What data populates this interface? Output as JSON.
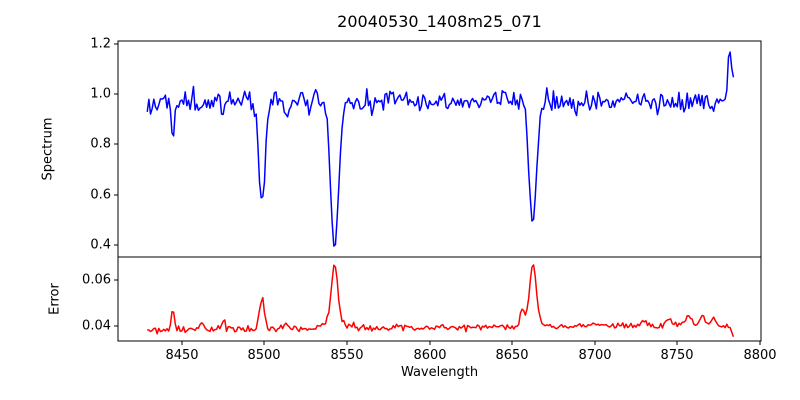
{
  "figure": {
    "title": "20040530_1408m25_071",
    "background_color": "#ffffff",
    "spine_color": "#000000",
    "text_color": "#000000"
  },
  "chart_data": [
    {
      "type": "line",
      "name": "spectrum-panel",
      "title": "20040530_1408m25_071",
      "ylabel": "Spectrum",
      "line_color": "#0000ff",
      "grid": false,
      "legend": null,
      "xlim": [
        8411.3,
        8800.7
      ],
      "ylim": [
        0.352,
        1.212
      ],
      "yticks": {
        "values": [
          0.4,
          0.6,
          0.8,
          1.0,
          1.2
        ],
        "labels": [
          "0.4",
          "0.6",
          "0.8",
          "1.0",
          "1.2"
        ]
      },
      "x_start": 8429,
      "x_end": 8784,
      "n_points": 356,
      "continuum": 0.972,
      "noise_sigma": 0.021,
      "noise_seed": 20040530,
      "absorption_lines": [
        {
          "center": 8444.5,
          "depth": 0.14,
          "sigma": 0.9
        },
        {
          "center": 8475.0,
          "depth": 0.05,
          "sigma": 1.0
        },
        {
          "center": 8498.5,
          "depth": 0.42,
          "sigma": 1.9
        },
        {
          "center": 8513.0,
          "depth": 0.05,
          "sigma": 0.9
        },
        {
          "center": 8542.5,
          "depth": 0.585,
          "sigma": 2.4
        },
        {
          "center": 8599.0,
          "depth": 0.04,
          "sigma": 0.9
        },
        {
          "center": 8648.0,
          "depth": 0.04,
          "sigma": 0.9
        },
        {
          "center": 8662.5,
          "depth": 0.49,
          "sigma": 2.2
        },
        {
          "center": 8688.0,
          "depth": 0.04,
          "sigma": 0.9
        }
      ],
      "emission_spike": {
        "center": 8782.0,
        "amp": 0.21,
        "sigma": 1.4
      }
    },
    {
      "type": "line",
      "name": "error-panel",
      "ylabel": "Error",
      "xlabel": "Wavelength",
      "line_color": "#ff0000",
      "grid": false,
      "legend": null,
      "xlim": [
        8411.3,
        8800.7
      ],
      "ylim": [
        0.0336,
        0.0698
      ],
      "yticks": {
        "values": [
          0.04,
          0.06
        ],
        "labels": [
          "0.04",
          "0.06"
        ]
      },
      "xticks": {
        "values": [
          8450,
          8500,
          8550,
          8600,
          8650,
          8700,
          8750,
          8800
        ],
        "labels": [
          "8450",
          "8500",
          "8550",
          "8600",
          "8650",
          "8700",
          "8750",
          "8800"
        ]
      },
      "x_start": 8429,
      "x_end": 8784,
      "n_points": 356,
      "baseline": 0.0385,
      "baseline_slope_per_angstrom": 5e-06,
      "noise_sigma": 0.0007,
      "noise_seed": 1408071,
      "peaks": [
        {
          "center": 8444.5,
          "amp": 0.0075,
          "sigma": 1.0
        },
        {
          "center": 8462.0,
          "amp": 0.003,
          "sigma": 1.2
        },
        {
          "center": 8475.0,
          "amp": 0.0035,
          "sigma": 1.2
        },
        {
          "center": 8498.5,
          "amp": 0.0125,
          "sigma": 1.6
        },
        {
          "center": 8513.0,
          "amp": 0.002,
          "sigma": 1.2
        },
        {
          "center": 8542.5,
          "amp": 0.024,
          "sigma": 1.8
        },
        {
          "center": 8542.5,
          "amp": 0.004,
          "sigma": 5.0
        },
        {
          "center": 8656.0,
          "amp": 0.006,
          "sigma": 1.2
        },
        {
          "center": 8662.5,
          "amp": 0.024,
          "sigma": 1.8
        },
        {
          "center": 8662.5,
          "amp": 0.004,
          "sigma": 5.0
        },
        {
          "center": 8700.0,
          "amp": 0.0015,
          "sigma": 3.0
        },
        {
          "center": 8730.0,
          "amp": 0.002,
          "sigma": 2.0
        },
        {
          "center": 8745.0,
          "amp": 0.003,
          "sigma": 2.5
        },
        {
          "center": 8757.0,
          "amp": 0.0045,
          "sigma": 1.5
        },
        {
          "center": 8765.0,
          "amp": 0.004,
          "sigma": 1.5
        },
        {
          "center": 8772.0,
          "amp": 0.0035,
          "sigma": 1.5
        }
      ],
      "end_drop": {
        "center": 8784.0,
        "amp": 0.004,
        "sigma": 1.3
      }
    }
  ]
}
